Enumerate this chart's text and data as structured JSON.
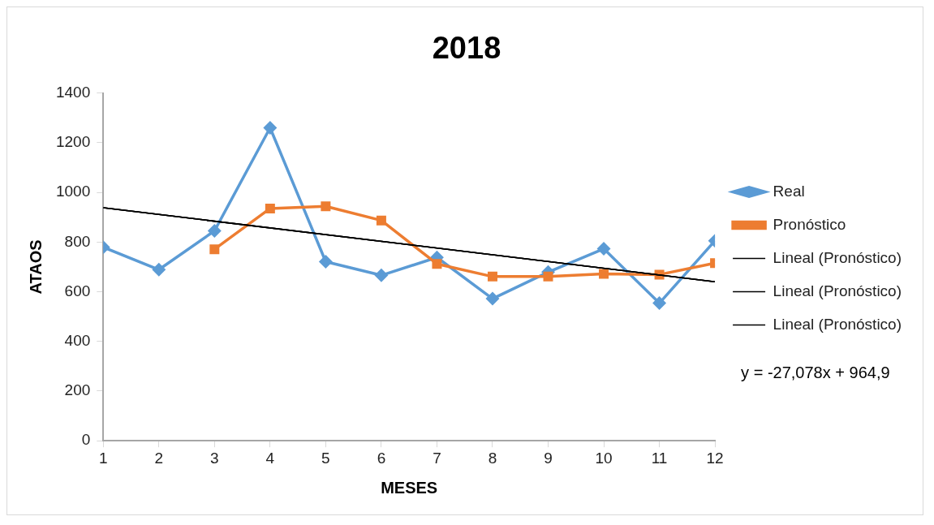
{
  "chart_data": {
    "type": "line",
    "title": "2018",
    "xlabel": "MESES",
    "ylabel": "ATAOS",
    "xlim": [
      1,
      12
    ],
    "xticks": [
      1,
      2,
      3,
      4,
      5,
      6,
      7,
      8,
      9,
      10,
      11,
      12
    ],
    "ylim": [
      0,
      1400
    ],
    "yticks": [
      0,
      200,
      400,
      600,
      800,
      1000,
      1200,
      1400
    ],
    "legend": "right",
    "series": [
      {
        "name": "Real",
        "color": "#5b9bd5",
        "marker": "diamond",
        "x": [
          1,
          2,
          3,
          4,
          5,
          6,
          7,
          8,
          9,
          10,
          11,
          12
        ],
        "values": [
          779,
          689,
          845,
          1260,
          721,
          666,
          738,
          572,
          679,
          773,
          554,
          805
        ]
      },
      {
        "name": "Pronóstico",
        "color": "#ed7d31",
        "marker": "square",
        "x": [
          3,
          4,
          5,
          6,
          7,
          8,
          9,
          10,
          11,
          12
        ],
        "values": [
          771,
          935,
          944,
          887,
          712,
          661,
          661,
          672,
          669,
          715
        ]
      },
      {
        "name": "Lineal (Pronóstico)",
        "color": "#000000",
        "marker": "none",
        "x": [
          1,
          12
        ],
        "values": [
          938,
          640
        ]
      },
      {
        "name": "Lineal (Pronóstico)",
        "color": "#000000",
        "marker": "none",
        "x": [
          1,
          12
        ],
        "values": [
          938,
          640
        ]
      },
      {
        "name": "Lineal (Pronóstico)",
        "color": "#000000",
        "marker": "none",
        "x": [
          1,
          12
        ],
        "values": [
          938,
          640
        ]
      }
    ],
    "annotations": [
      "y = -27,078x + 964,9"
    ]
  }
}
